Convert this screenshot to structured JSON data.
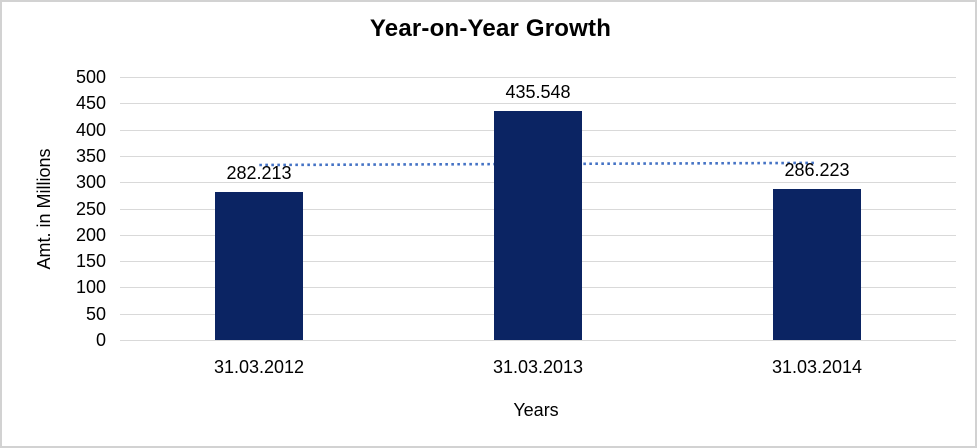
{
  "chart_data": {
    "type": "bar",
    "title": "Year-on-Year Growth",
    "xlabel": "Years",
    "ylabel": "Amt. in Millions",
    "categories": [
      "31.03.2012",
      "31.03.2013",
      "31.03.2014"
    ],
    "values": [
      282.213,
      435.548,
      286.223
    ],
    "data_labels": [
      "282.213",
      "435.548",
      "286.223"
    ],
    "ylim": [
      0,
      500
    ],
    "ytick_step": 50,
    "ytick_labels": [
      "0",
      "50",
      "100",
      "150",
      "200",
      "250",
      "300",
      "350",
      "400",
      "450",
      "500"
    ],
    "grid": true,
    "legend": "none",
    "trendline": {
      "type": "linear",
      "style": "dotted",
      "start_value": 332.7,
      "end_value": 336.7
    },
    "colors": {
      "bar": "#0b2463",
      "gridline": "#d9d9d9",
      "trendline": "#4472c4",
      "text": "#000000",
      "background": "#ffffff",
      "frame_border": "#d2d2d2"
    }
  }
}
